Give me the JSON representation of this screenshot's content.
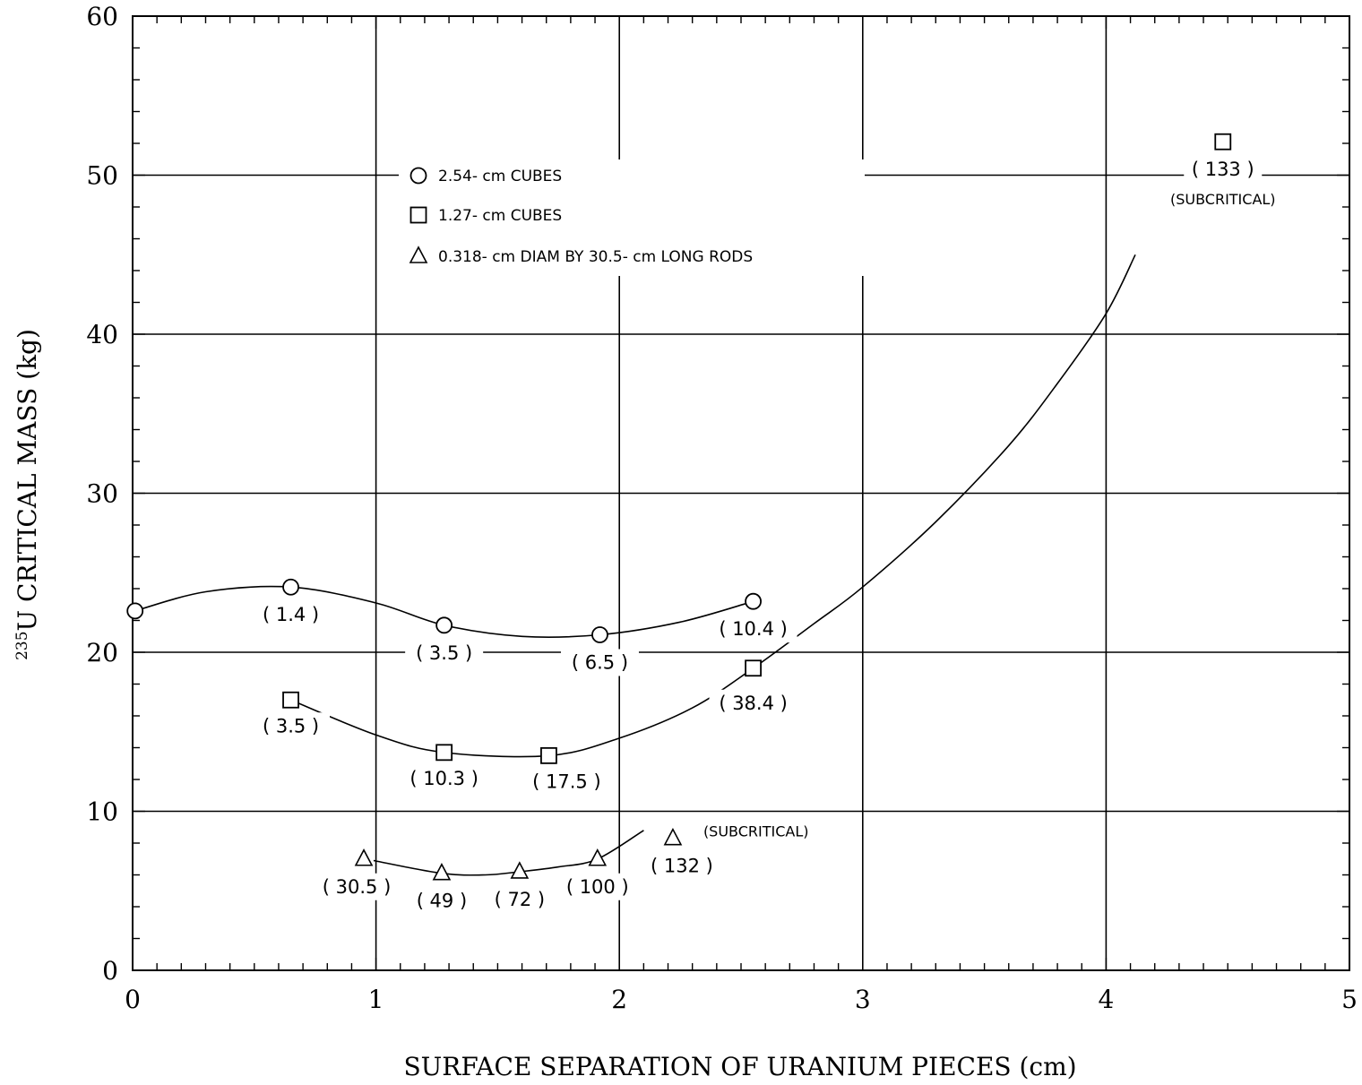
{
  "chart_data": {
    "type": "scatter",
    "xlabel": "SURFACE SEPARATION OF URANIUM PIECES (cm)",
    "ylabel_sup": "235",
    "ylabel": "U CRITICAL MASS (kg)",
    "xlim": [
      0,
      5
    ],
    "ylim": [
      0,
      60
    ],
    "xticks": [
      "0",
      "1",
      "2",
      "3",
      "4",
      "5"
    ],
    "yticks": [
      "0",
      "10",
      "20",
      "30",
      "40",
      "50",
      "60"
    ],
    "grid": true,
    "legend_position": "upper-center",
    "series": [
      {
        "name": "2.54- cm  CUBES",
        "marker": "circle",
        "points": [
          {
            "x": 0.01,
            "y": 22.6,
            "label": ""
          },
          {
            "x": 0.65,
            "y": 24.1,
            "label": "( 1.4 )"
          },
          {
            "x": 1.28,
            "y": 21.7,
            "label": "( 3.5 )"
          },
          {
            "x": 1.92,
            "y": 21.1,
            "label": "( 6.5 )"
          },
          {
            "x": 2.55,
            "y": 23.2,
            "label": "( 10.4 )"
          }
        ],
        "curve": [
          [
            0.01,
            22.6
          ],
          [
            0.3,
            23.8
          ],
          [
            0.65,
            24.1
          ],
          [
            1.0,
            23.1
          ],
          [
            1.28,
            21.7
          ],
          [
            1.6,
            21.0
          ],
          [
            1.92,
            21.1
          ],
          [
            2.25,
            21.9
          ],
          [
            2.55,
            23.2
          ]
        ]
      },
      {
        "name": "1.27- cm  CUBES",
        "marker": "square",
        "points": [
          {
            "x": 0.65,
            "y": 17.0,
            "label": "( 3.5 )"
          },
          {
            "x": 1.28,
            "y": 13.7,
            "label": "( 10.3 )"
          },
          {
            "x": 1.71,
            "y": 13.5,
            "label": "( 17.5 )"
          },
          {
            "x": 2.55,
            "y": 19.0,
            "label": "( 38.4 )"
          },
          {
            "x": 4.48,
            "y": 52.1,
            "label": "( 133 )",
            "note": "(SUBCRITICAL)"
          }
        ],
        "curve": [
          [
            0.65,
            17.0
          ],
          [
            1.0,
            14.8
          ],
          [
            1.28,
            13.7
          ],
          [
            1.71,
            13.5
          ],
          [
            2.0,
            14.6
          ],
          [
            2.3,
            16.5
          ],
          [
            2.55,
            19.0
          ],
          [
            2.8,
            21.8
          ],
          [
            3.0,
            24.1
          ],
          [
            3.3,
            28.2
          ],
          [
            3.6,
            33.0
          ],
          [
            3.8,
            36.9
          ],
          [
            4.0,
            41.3
          ],
          [
            4.12,
            45.0
          ]
        ]
      },
      {
        "name": "0.318- cm DIAM BY 30.5- cm  LONG RODS",
        "marker": "triangle",
        "points": [
          {
            "x": 0.95,
            "y": 7.0,
            "label": "( 30.5 )"
          },
          {
            "x": 1.27,
            "y": 6.1,
            "label": "( 49 )"
          },
          {
            "x": 1.59,
            "y": 6.2,
            "label": "( 72 )"
          },
          {
            "x": 1.91,
            "y": 7.0,
            "label": "( 100 )"
          },
          {
            "x": 2.22,
            "y": 8.3,
            "label": "( 132 )",
            "note": "(SUBCRITICAL)"
          }
        ],
        "curve": [
          [
            0.99,
            6.9
          ],
          [
            1.27,
            6.1
          ],
          [
            1.45,
            6.0
          ],
          [
            1.59,
            6.2
          ],
          [
            1.75,
            6.5
          ],
          [
            1.91,
            7.0
          ],
          [
            2.1,
            8.8
          ]
        ]
      }
    ]
  }
}
